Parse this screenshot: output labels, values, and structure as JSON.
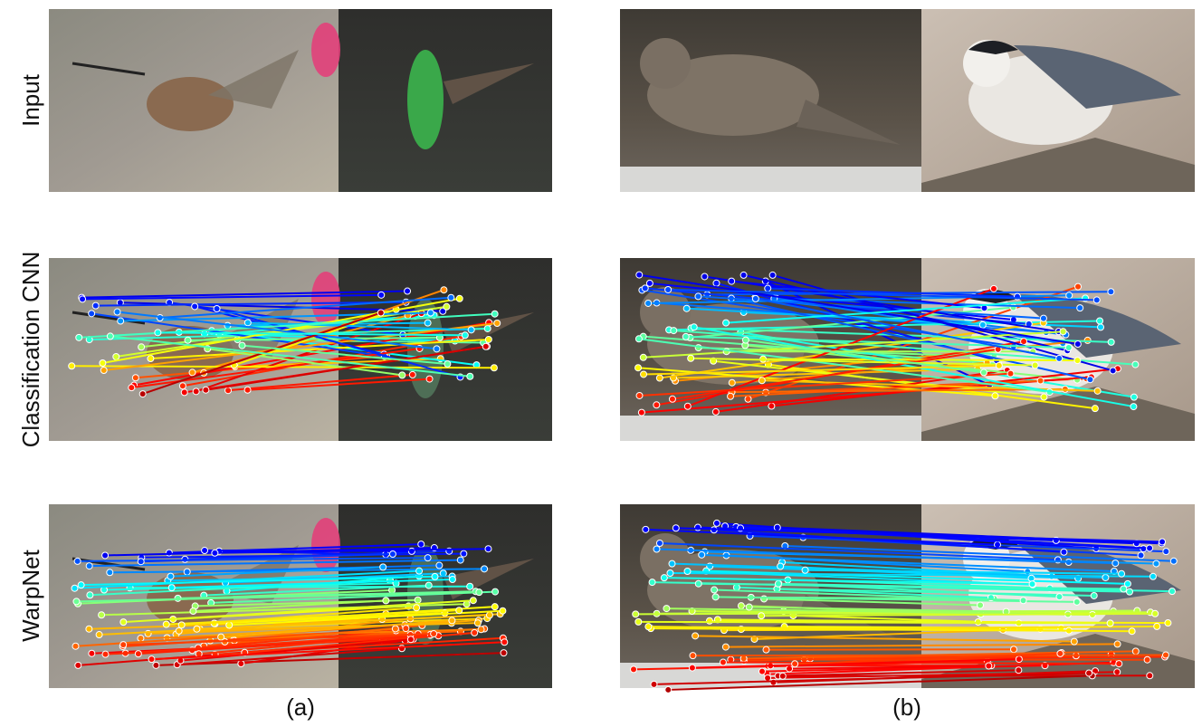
{
  "row_labels": [
    "Input",
    "Classification CNN",
    "WarpNet"
  ],
  "panel_labels": [
    "(a)",
    "(b)"
  ]
}
